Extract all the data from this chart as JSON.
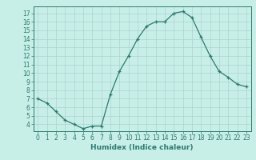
{
  "x": [
    0,
    1,
    2,
    3,
    4,
    5,
    6,
    7,
    8,
    9,
    10,
    11,
    12,
    13,
    14,
    15,
    16,
    17,
    18,
    19,
    20,
    21,
    22,
    23
  ],
  "y": [
    7.0,
    6.5,
    5.5,
    4.5,
    4.0,
    3.5,
    3.8,
    3.8,
    7.5,
    10.2,
    12.0,
    14.0,
    15.5,
    16.0,
    16.0,
    17.0,
    17.2,
    16.5,
    14.2,
    12.0,
    10.2,
    9.5,
    8.7,
    8.4
  ],
  "line_color": "#2d7a6e",
  "marker_color": "#2d7a6e",
  "bg_color": "#c8eee8",
  "grid_color": "#aad4ce",
  "axis_color": "#2d7a6e",
  "xlabel": "Humidex (Indice chaleur)",
  "ylim": [
    3.2,
    17.8
  ],
  "xlim": [
    -0.5,
    23.5
  ],
  "yticks": [
    4,
    5,
    6,
    7,
    8,
    9,
    10,
    11,
    12,
    13,
    14,
    15,
    16,
    17
  ],
  "xticks": [
    0,
    1,
    2,
    3,
    4,
    5,
    6,
    7,
    8,
    9,
    10,
    11,
    12,
    13,
    14,
    15,
    16,
    17,
    18,
    19,
    20,
    21,
    22,
    23
  ],
  "label_fontsize": 6.5,
  "tick_fontsize": 5.5
}
